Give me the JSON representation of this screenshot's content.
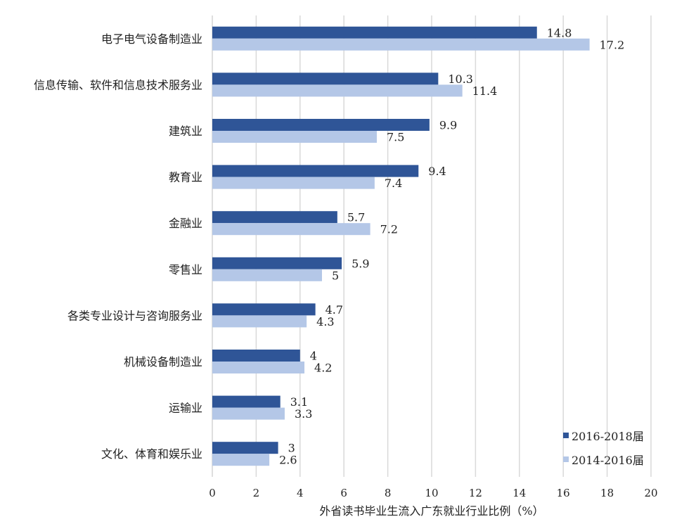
{
  "chart_data": {
    "type": "bar",
    "orientation": "horizontal",
    "title": "",
    "xlabel": "外省读书毕业生流入广东就业行业比例（%）",
    "ylabel": "",
    "xlim": [
      0,
      20
    ],
    "xticks": [
      0,
      2,
      4,
      6,
      8,
      10,
      12,
      14,
      16,
      18,
      20
    ],
    "grid": true,
    "legend_position": "bottom-right",
    "categories": [
      "电子电气设备制造业",
      "信息传输、软件和信息技术服务业",
      "建筑业",
      "教育业",
      "金融业",
      "零售业",
      "各类专业设计与咨询服务业",
      "机械设备制造业",
      "运输业",
      "文化、体育和娱乐业"
    ],
    "series": [
      {
        "name": "2016-2018届",
        "color": "#2F5597",
        "values": [
          14.8,
          10.3,
          9.9,
          9.4,
          5.7,
          5.9,
          4.7,
          4,
          3.1,
          3
        ]
      },
      {
        "name": "2014-2016届",
        "color": "#B4C7E7",
        "values": [
          17.2,
          11.4,
          7.5,
          7.4,
          7.2,
          5,
          4.3,
          4.2,
          3.3,
          2.6
        ]
      }
    ]
  }
}
